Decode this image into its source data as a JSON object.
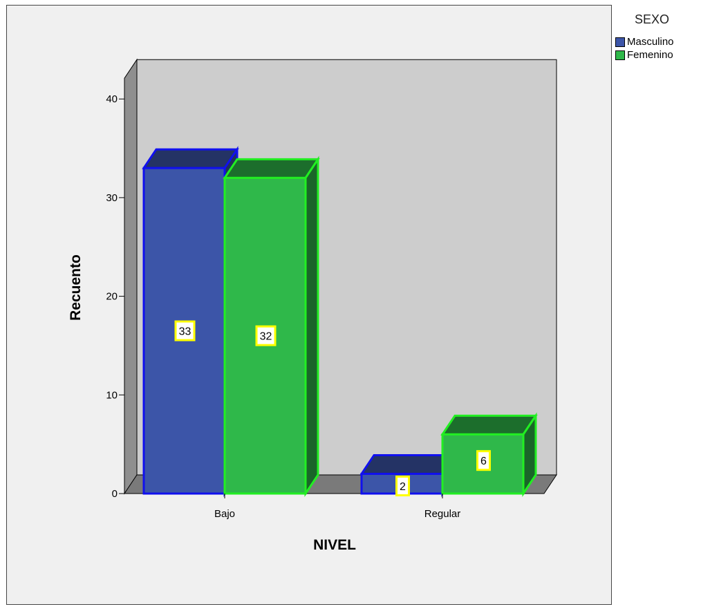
{
  "chart_data": {
    "type": "bar",
    "title": "",
    "xlabel": "NIVEL",
    "ylabel": "Recuento",
    "categories": [
      "Bajo",
      "Regular"
    ],
    "series": [
      {
        "name": "Masculino",
        "values": [
          33,
          2
        ],
        "color": "#3c55a8",
        "edge": "#1010ee"
      },
      {
        "name": "Femenino",
        "values": [
          32,
          6
        ],
        "color": "#2fb84a",
        "edge": "#22ee22"
      }
    ],
    "ylim": [
      0,
      40
    ],
    "yticks": [
      0,
      10,
      20,
      30,
      40
    ],
    "legend_title": "SEXO",
    "legend_position": "top-right",
    "grid": false,
    "three_d": true
  }
}
